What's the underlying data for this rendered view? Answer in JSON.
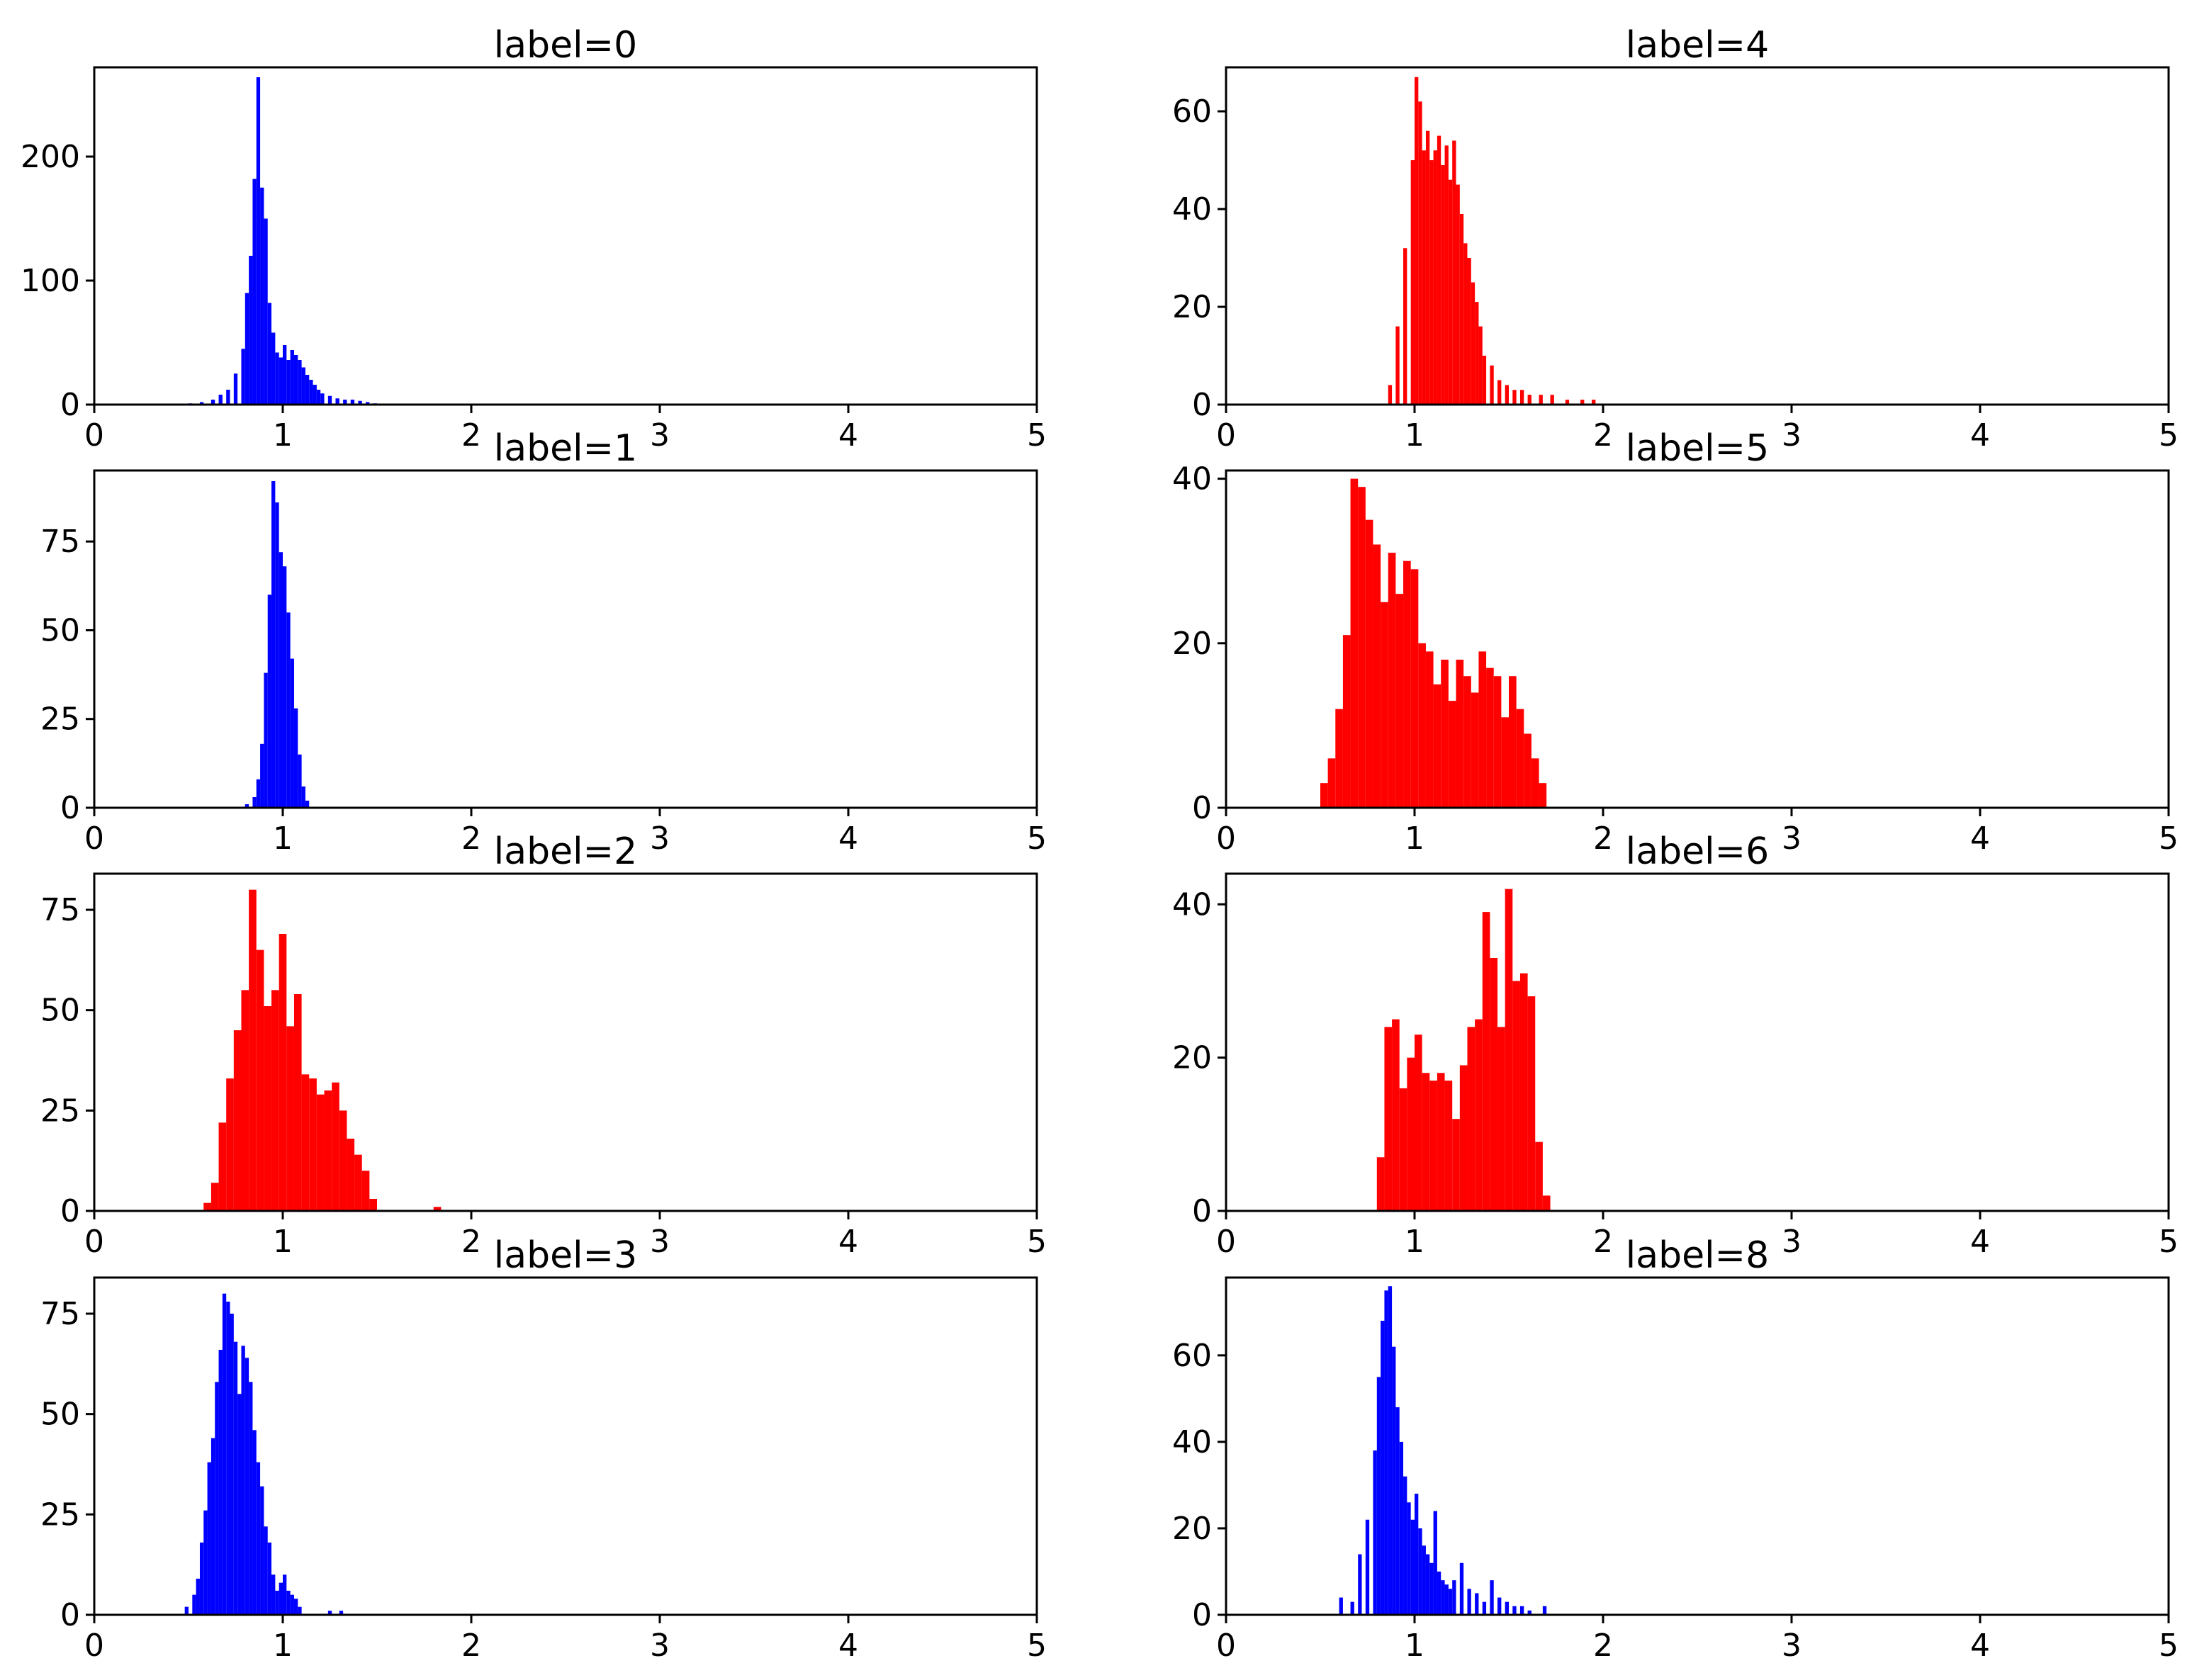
{
  "chart_data": [
    {
      "type": "bar",
      "title": "label=0",
      "color": "#0000ff",
      "xlim": [
        0,
        5
      ],
      "ylim": [
        0,
        272
      ],
      "xticks": [
        "0",
        "1",
        "2",
        "3",
        "4",
        "5"
      ],
      "yticks": [
        "0",
        "100",
        "200"
      ],
      "x": [
        0.5,
        0.56,
        0.62,
        0.66,
        0.7,
        0.74,
        0.78,
        0.8,
        0.82,
        0.84,
        0.86,
        0.88,
        0.9,
        0.92,
        0.94,
        0.96,
        0.98,
        1.0,
        1.02,
        1.04,
        1.06,
        1.08,
        1.1,
        1.12,
        1.14,
        1.16,
        1.18,
        1.2,
        1.24,
        1.28,
        1.32,
        1.36,
        1.4,
        1.44,
        1.48
      ],
      "values": [
        1,
        2,
        4,
        8,
        12,
        25,
        45,
        90,
        120,
        182,
        264,
        175,
        150,
        82,
        58,
        42,
        38,
        48,
        36,
        44,
        40,
        36,
        30,
        24,
        20,
        16,
        12,
        9,
        7,
        5,
        4,
        4,
        3,
        2,
        1
      ],
      "bin_width": 0.02
    },
    {
      "type": "bar",
      "title": "label=4",
      "color": "#ff0000",
      "xlim": [
        0,
        5
      ],
      "ylim": [
        0,
        69
      ],
      "xticks": [
        "0",
        "1",
        "2",
        "3",
        "4",
        "5"
      ],
      "yticks": [
        "0",
        "20",
        "40",
        "60"
      ],
      "x": [
        0.86,
        0.9,
        0.94,
        0.98,
        1.0,
        1.02,
        1.04,
        1.06,
        1.08,
        1.1,
        1.12,
        1.14,
        1.16,
        1.18,
        1.2,
        1.22,
        1.24,
        1.26,
        1.28,
        1.3,
        1.32,
        1.34,
        1.36,
        1.4,
        1.44,
        1.48,
        1.52,
        1.56,
        1.6,
        1.66,
        1.72,
        1.8,
        1.88,
        1.94
      ],
      "values": [
        4,
        16,
        32,
        50,
        67,
        62,
        52,
        56,
        50,
        52,
        55,
        49,
        53,
        46,
        54,
        45,
        39,
        33,
        30,
        25,
        21,
        16,
        10,
        8,
        5,
        4,
        3,
        3,
        2,
        2,
        2,
        1,
        1,
        1
      ],
      "bin_width": 0.02
    },
    {
      "type": "bar",
      "title": "label=1",
      "color": "#0000ff",
      "xlim": [
        0,
        5
      ],
      "ylim": [
        0,
        95
      ],
      "xticks": [
        "0",
        "1",
        "2",
        "3",
        "4",
        "5"
      ],
      "yticks": [
        "0",
        "25",
        "50",
        "75"
      ],
      "x": [
        0.8,
        0.84,
        0.86,
        0.88,
        0.9,
        0.92,
        0.94,
        0.96,
        0.98,
        1.0,
        1.02,
        1.04,
        1.06,
        1.08,
        1.1,
        1.12
      ],
      "values": [
        1,
        3,
        8,
        18,
        38,
        60,
        92,
        86,
        72,
        68,
        55,
        42,
        28,
        15,
        6,
        2
      ],
      "bin_width": 0.02
    },
    {
      "type": "bar",
      "title": "label=5",
      "color": "#ff0000",
      "xlim": [
        0,
        5
      ],
      "ylim": [
        0,
        41
      ],
      "xticks": [
        "0",
        "1",
        "2",
        "3",
        "4",
        "5"
      ],
      "yticks": [
        "0",
        "20",
        "40"
      ],
      "x": [
        0.5,
        0.54,
        0.58,
        0.62,
        0.66,
        0.7,
        0.74,
        0.78,
        0.82,
        0.86,
        0.9,
        0.94,
        0.98,
        1.02,
        1.06,
        1.1,
        1.14,
        1.18,
        1.22,
        1.26,
        1.3,
        1.34,
        1.38,
        1.42,
        1.46,
        1.5,
        1.54,
        1.58,
        1.62,
        1.66
      ],
      "values": [
        3,
        6,
        12,
        21,
        40,
        39,
        35,
        32,
        25,
        31,
        26,
        30,
        29,
        20,
        19,
        15,
        18,
        13,
        18,
        16,
        14,
        19,
        17,
        16,
        11,
        16,
        12,
        9,
        6,
        3
      ],
      "bin_width": 0.04
    },
    {
      "type": "bar",
      "title": "label=2",
      "color": "#ff0000",
      "xlim": [
        0,
        5
      ],
      "ylim": [
        0,
        84
      ],
      "xticks": [
        "0",
        "1",
        "2",
        "3",
        "4",
        "5"
      ],
      "yticks": [
        "0",
        "25",
        "50",
        "75"
      ],
      "x": [
        0.58,
        0.62,
        0.66,
        0.7,
        0.74,
        0.78,
        0.82,
        0.86,
        0.9,
        0.94,
        0.98,
        1.02,
        1.06,
        1.1,
        1.14,
        1.18,
        1.22,
        1.26,
        1.3,
        1.34,
        1.38,
        1.42,
        1.46,
        1.8
      ],
      "values": [
        2,
        7,
        22,
        33,
        45,
        55,
        80,
        65,
        51,
        55,
        69,
        46,
        54,
        34,
        33,
        29,
        30,
        32,
        25,
        18,
        14,
        10,
        3,
        1
      ],
      "bin_width": 0.04
    },
    {
      "type": "bar",
      "title": "label=6",
      "color": "#ff0000",
      "xlim": [
        0,
        5
      ],
      "ylim": [
        0,
        44
      ],
      "xticks": [
        "0",
        "1",
        "2",
        "3",
        "4",
        "5"
      ],
      "yticks": [
        "0",
        "20",
        "40"
      ],
      "x": [
        0.8,
        0.84,
        0.88,
        0.92,
        0.96,
        1.0,
        1.04,
        1.08,
        1.12,
        1.16,
        1.2,
        1.24,
        1.28,
        1.32,
        1.36,
        1.4,
        1.44,
        1.48,
        1.52,
        1.56,
        1.6,
        1.64,
        1.68
      ],
      "values": [
        7,
        24,
        25,
        16,
        20,
        23,
        18,
        17,
        18,
        17,
        12,
        19,
        24,
        25,
        39,
        33,
        24,
        42,
        30,
        31,
        28,
        9,
        2
      ],
      "bin_width": 0.04
    },
    {
      "type": "bar",
      "title": "label=3",
      "color": "#0000ff",
      "xlim": [
        0,
        5
      ],
      "ylim": [
        0,
        84
      ],
      "xticks": [
        "0",
        "1",
        "2",
        "3",
        "4",
        "5"
      ],
      "yticks": [
        "0",
        "25",
        "50",
        "75"
      ],
      "x": [
        0.48,
        0.52,
        0.54,
        0.56,
        0.58,
        0.6,
        0.62,
        0.64,
        0.66,
        0.68,
        0.7,
        0.72,
        0.74,
        0.76,
        0.78,
        0.8,
        0.82,
        0.84,
        0.86,
        0.88,
        0.9,
        0.92,
        0.94,
        0.96,
        0.98,
        1.0,
        1.02,
        1.04,
        1.06,
        1.08,
        1.24,
        1.3
      ],
      "values": [
        2,
        5,
        9,
        18,
        26,
        38,
        44,
        58,
        66,
        80,
        78,
        75,
        68,
        55,
        67,
        64,
        58,
        46,
        38,
        32,
        22,
        18,
        10,
        6,
        8,
        10,
        6,
        5,
        4,
        2,
        1,
        1
      ],
      "bin_width": 0.02
    },
    {
      "type": "bar",
      "title": "label=8",
      "color": "#0000ff",
      "xlim": [
        0,
        5
      ],
      "ylim": [
        0,
        78
      ],
      "xticks": [
        "0",
        "1",
        "2",
        "3",
        "4",
        "5"
      ],
      "yticks": [
        "0",
        "20",
        "40",
        "60"
      ],
      "x": [
        0.6,
        0.66,
        0.7,
        0.74,
        0.78,
        0.8,
        0.82,
        0.84,
        0.86,
        0.88,
        0.9,
        0.92,
        0.94,
        0.96,
        0.98,
        1.0,
        1.02,
        1.04,
        1.06,
        1.08,
        1.1,
        1.12,
        1.14,
        1.16,
        1.18,
        1.2,
        1.24,
        1.28,
        1.32,
        1.36,
        1.4,
        1.44,
        1.48,
        1.52,
        1.56,
        1.6,
        1.68
      ],
      "values": [
        4,
        3,
        14,
        22,
        38,
        55,
        68,
        75,
        76,
        62,
        48,
        40,
        32,
        26,
        22,
        28,
        20,
        16,
        14,
        12,
        24,
        10,
        8,
        7,
        6,
        8,
        12,
        6,
        5,
        3,
        8,
        4,
        3,
        2,
        2,
        1,
        2
      ],
      "bin_width": 0.02
    }
  ]
}
